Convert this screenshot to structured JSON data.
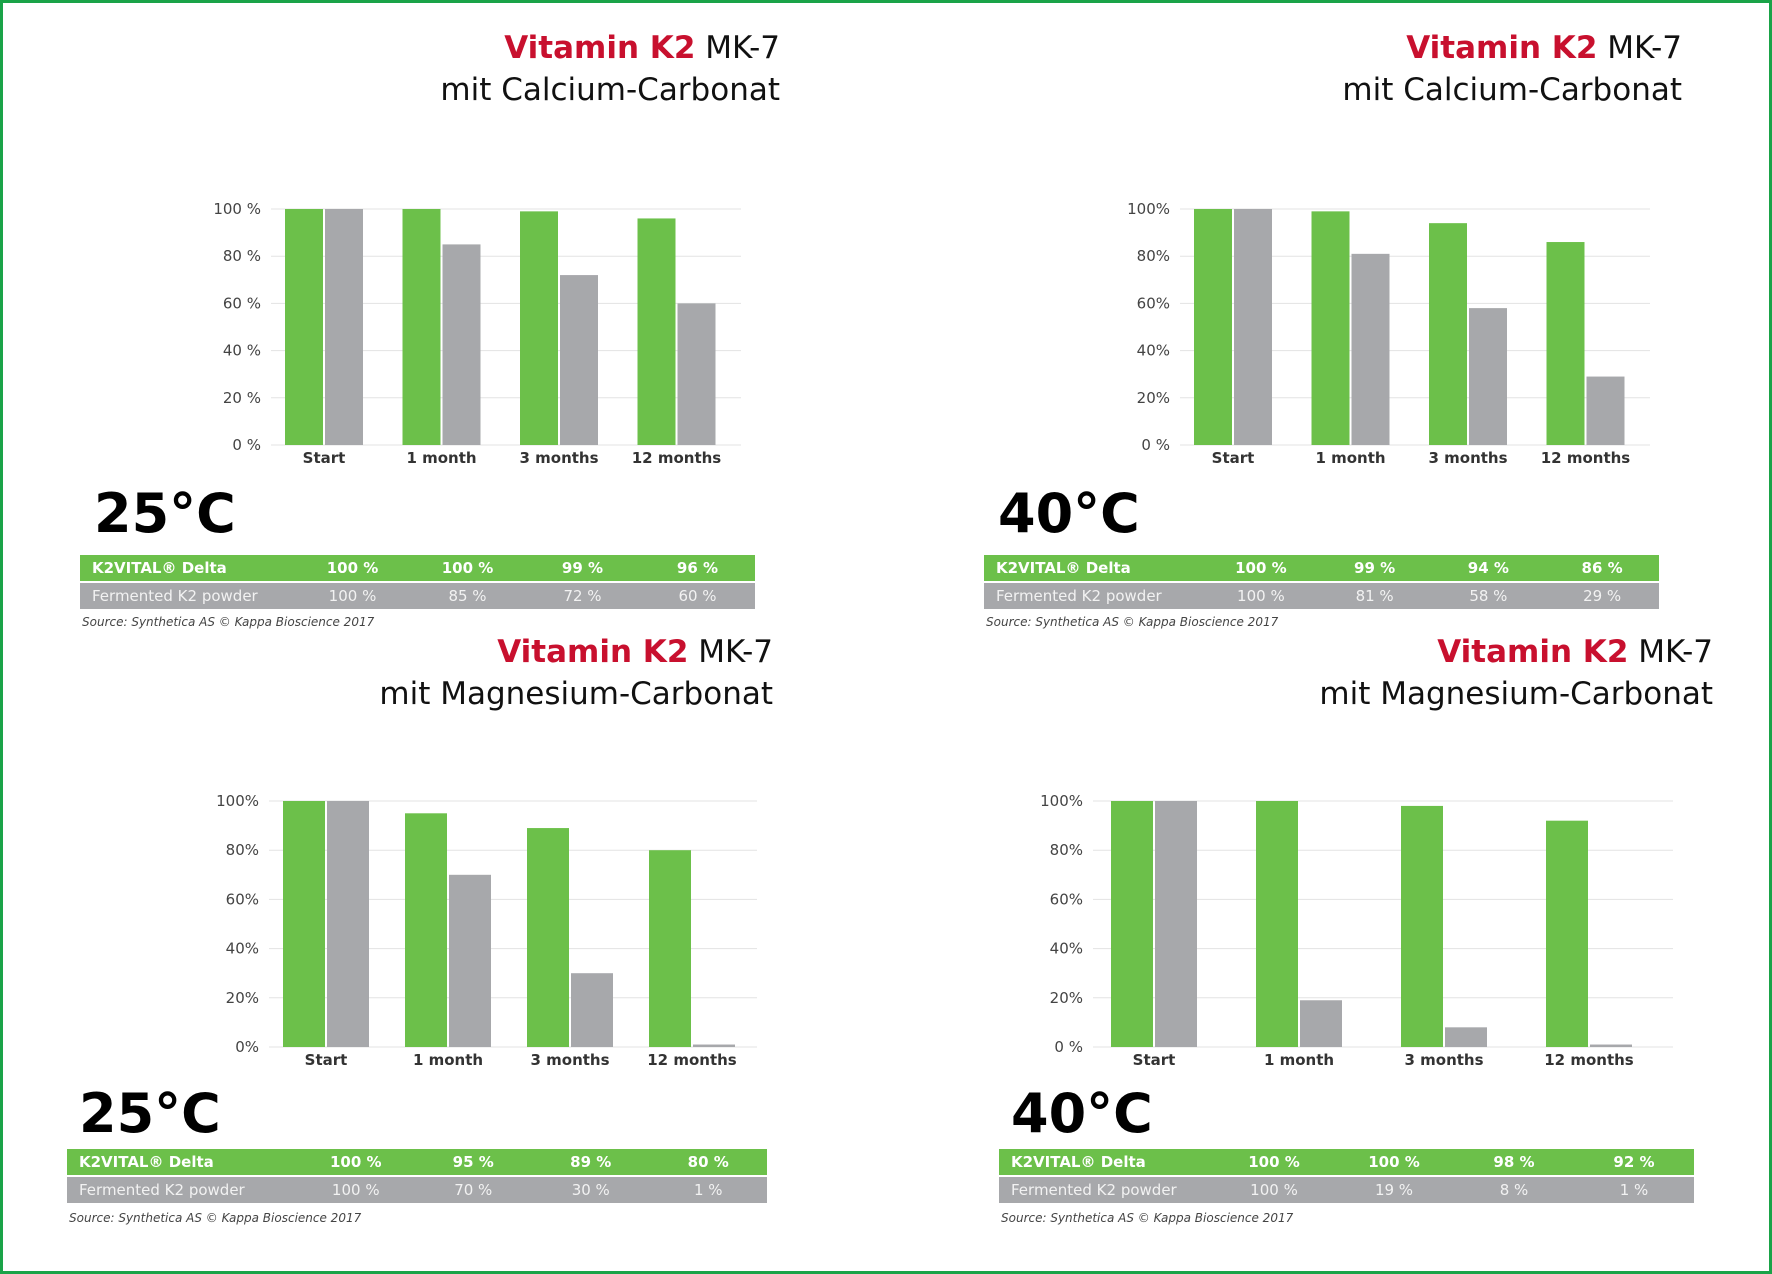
{
  "colors": {
    "green": "#6cc04a",
    "grey": "#a7a8ab",
    "title_red": "#c8102e",
    "border": "#1aa348"
  },
  "common": {
    "series_names": [
      "K2VITAL® Delta",
      "Fermented K2 powder"
    ],
    "source": "Source: Synthetica AS © Kappa Bioscience 2017"
  },
  "chart_data": [
    {
      "type": "bar",
      "title_red": "Vitamin K2",
      "title_rest": " MK-7",
      "subtitle": "mit Calcium-Carbonat",
      "temperature": "25°C",
      "categories": [
        "Start",
        "1 month",
        "3 months",
        "12 months"
      ],
      "ticks": [
        "100 %",
        "80 %",
        "60 %",
        "40 %",
        "20 %",
        "0 %"
      ],
      "ylim": [
        0,
        100
      ],
      "series": [
        {
          "name": "K2VITAL® Delta",
          "values": [
            100,
            100,
            99,
            96
          ],
          "labels": [
            "100 %",
            "100 %",
            "99 %",
            "96 %"
          ]
        },
        {
          "name": "Fermented K2 powder",
          "values": [
            100,
            85,
            72,
            60
          ],
          "labels": [
            "100 %",
            "85 %",
            "72 %",
            "60 %"
          ]
        }
      ]
    },
    {
      "type": "bar",
      "title_red": "Vitamin K2",
      "title_rest": " MK-7",
      "subtitle": "mit Calcium-Carbonat",
      "temperature": "40°C",
      "categories": [
        "Start",
        "1 month",
        "3 months",
        "12 months"
      ],
      "ticks": [
        "100%",
        "80%",
        "60%",
        "40%",
        "20%",
        "0 %"
      ],
      "ylim": [
        0,
        100
      ],
      "series": [
        {
          "name": "K2VITAL® Delta",
          "values": [
            100,
            99,
            94,
            86
          ],
          "labels": [
            "100 %",
            "99 %",
            "94 %",
            "86 %"
          ]
        },
        {
          "name": "Fermented K2 powder",
          "values": [
            100,
            81,
            58,
            29
          ],
          "labels": [
            "100 %",
            "81 %",
            "58 %",
            "29 %"
          ]
        }
      ]
    },
    {
      "type": "bar",
      "title_red": "Vitamin K2",
      "title_rest": " MK-7",
      "subtitle": "mit Magnesium-Carbonat",
      "temperature": "25°C",
      "categories": [
        "Start",
        "1 month",
        "3 months",
        "12 months"
      ],
      "ticks": [
        "100%",
        "80%",
        "60%",
        "40%",
        "20%",
        "0%"
      ],
      "ylim": [
        0,
        100
      ],
      "series": [
        {
          "name": "K2VITAL® Delta",
          "values": [
            100,
            95,
            89,
            80
          ],
          "labels": [
            "100 %",
            "95 %",
            "89 %",
            "80 %"
          ]
        },
        {
          "name": "Fermented K2 powder",
          "values": [
            100,
            70,
            30,
            1
          ],
          "labels": [
            "100 %",
            "70 %",
            "30 %",
            "1 %"
          ]
        }
      ]
    },
    {
      "type": "bar",
      "title_red": "Vitamin K2",
      "title_rest": " MK-7",
      "subtitle": "mit Magnesium-Carbonat",
      "temperature": "40°C",
      "categories": [
        "Start",
        "1 month",
        "3 months",
        "12 months"
      ],
      "ticks": [
        "100%",
        "80%",
        "60%",
        "40%",
        "20%",
        "0 %"
      ],
      "ylim": [
        0,
        100
      ],
      "series": [
        {
          "name": "K2VITAL® Delta",
          "values": [
            100,
            100,
            98,
            92
          ],
          "labels": [
            "100 %",
            "100 %",
            "98 %",
            "92 %"
          ]
        },
        {
          "name": "Fermented K2 powder",
          "values": [
            100,
            19,
            8,
            1
          ],
          "labels": [
            "100 %",
            "19 %",
            "8 %",
            "1 %"
          ]
        }
      ]
    }
  ]
}
